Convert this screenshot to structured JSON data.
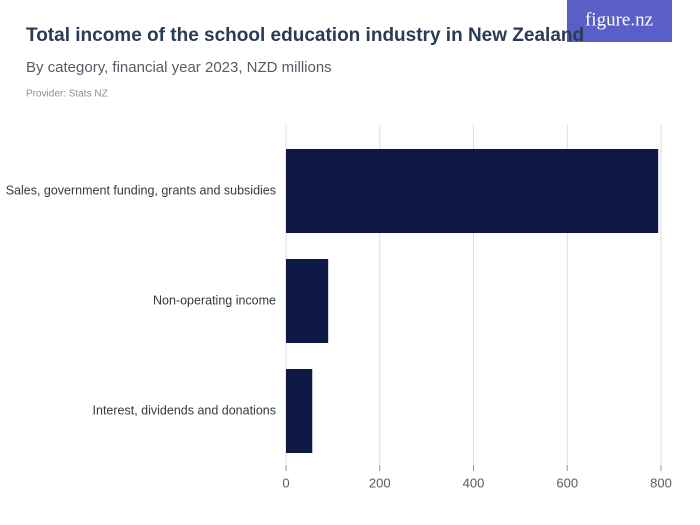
{
  "logo": "figure.nz",
  "chart_data": {
    "type": "bar",
    "orientation": "horizontal",
    "title": "Total income of the school education industry in New Zealand",
    "subtitle": "By category, financial year 2023, NZD millions",
    "provider": "Provider: Stats NZ",
    "categories": [
      "Sales, government funding, grants and subsidies",
      "Non-operating income",
      "Interest, dividends and donations"
    ],
    "values": [
      794,
      90,
      56
    ],
    "color": "#0d1845",
    "xlim": [
      0,
      800
    ],
    "xticks": [
      0,
      200,
      400,
      600,
      800
    ],
    "grid": true
  }
}
